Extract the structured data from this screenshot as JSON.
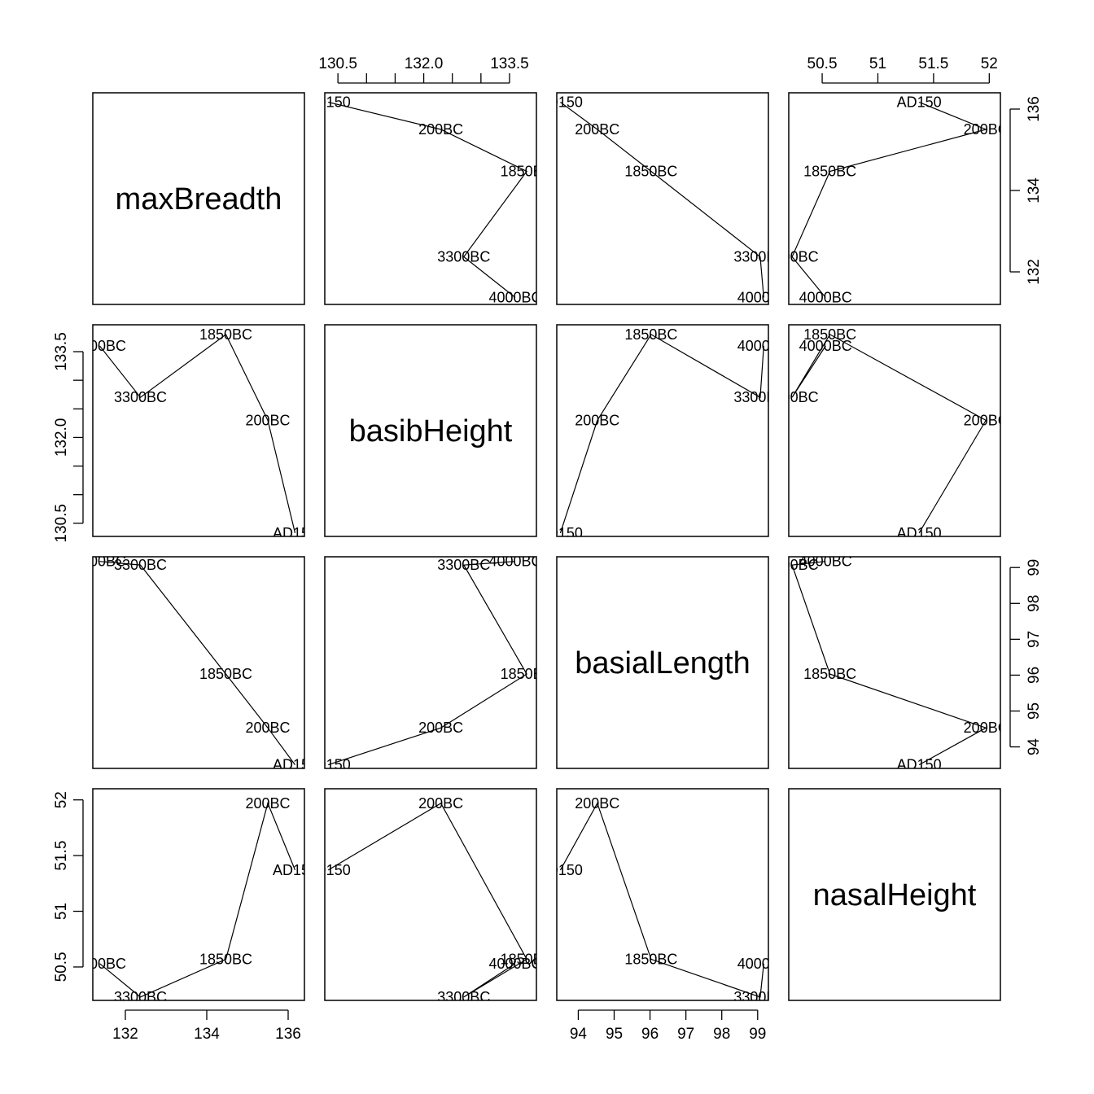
{
  "chart_data": {
    "type": "scatter",
    "kind": "scatterplot-matrix",
    "point_labels": [
      "4000BC",
      "3300BC",
      "1850BC",
      "200BC",
      "AD150"
    ],
    "connect_points": true,
    "variables": [
      {
        "name": "maxBreadth",
        "values": [
          131.37,
          132.37,
          134.47,
          135.5,
          136.17
        ],
        "range": [
          131.2,
          136.4
        ],
        "ticks": [
          132,
          134,
          136
        ]
      },
      {
        "name": "basibHeight",
        "values": [
          133.6,
          132.7,
          133.8,
          132.3,
          130.33
        ],
        "range": [
          130.27,
          133.97
        ],
        "ticks": [
          130.5,
          131.0,
          131.5,
          132.0,
          132.5,
          133.0,
          133.5
        ],
        "tick_labels": [
          "130.5",
          "",
          "",
          "132.0",
          "",
          "",
          "133.5"
        ]
      },
      {
        "name": "basialLength",
        "values": [
          99.17,
          99.07,
          96.03,
          94.53,
          93.5
        ],
        "range": [
          93.4,
          99.3
        ],
        "ticks": [
          94,
          95,
          96,
          97,
          98,
          99
        ]
      },
      {
        "name": "nasalHeight",
        "values": [
          50.53,
          50.23,
          50.57,
          51.97,
          51.37
        ],
        "range": [
          50.2,
          52.1
        ],
        "ticks": [
          50.5,
          51.0,
          51.5,
          52.0
        ]
      }
    ],
    "axes": {
      "top": {
        "0": "",
        "1": "basibHeight",
        "2": "",
        "3": "nasalHeight"
      },
      "bottom": {
        "0": "maxBreadth",
        "2": "basialLength"
      },
      "left": {
        "1": "basibHeight",
        "3": "nasalHeight"
      },
      "right": {
        "0": "maxBreadth",
        "2": "basialLength"
      }
    }
  }
}
